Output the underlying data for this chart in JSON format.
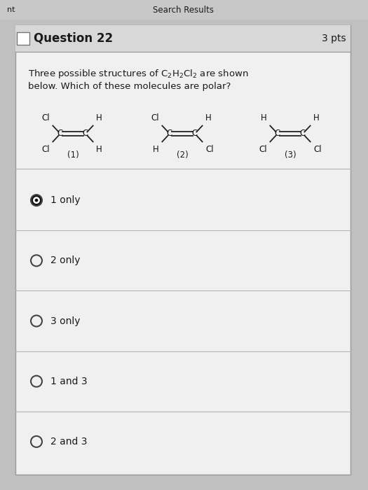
{
  "bg_color": "#c0c0c0",
  "card_bg": "#f0f0f0",
  "header_row_bg": "#d8d8d8",
  "title": "Question 22",
  "pts": "3 pts",
  "question_line1": "Three possible structures of C$_2$H$_2$Cl$_2$ are shown",
  "question_line2": "below. Which of these molecules are polar?",
  "mol_labels": [
    "(1)",
    "(2)",
    "(3)"
  ],
  "mol1": {
    "ul": "Cl",
    "ll": "Cl",
    "ur": "H",
    "lr": "H"
  },
  "mol2": {
    "ul": "Cl",
    "ll": "H",
    "ur": "H",
    "lr": "Cl"
  },
  "mol3": {
    "ul": "H",
    "ll": "Cl",
    "ur": "H",
    "lr": "Cl"
  },
  "options": [
    "1 only",
    "2 only",
    "3 only",
    "1 and 3",
    "2 and 3"
  ],
  "selected": 0,
  "header_top_left": "nt",
  "header_top_center": "Search Results",
  "text_color": "#1a1a1a",
  "line_color": "#b0b0b0",
  "card_border": "#999999",
  "top_bar_bg": "#c8c8c8"
}
